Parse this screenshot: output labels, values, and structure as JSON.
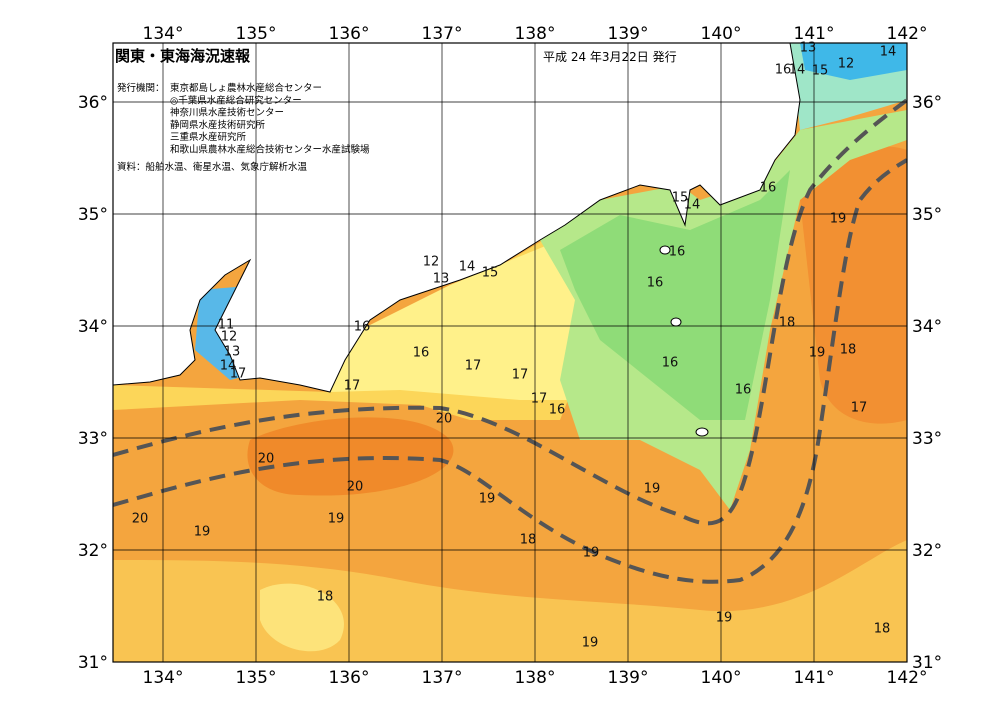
{
  "header": {
    "title": "関東・東海海況速報",
    "date": "平成 24 年3月22日 発行",
    "agencies_label": "発行機関：",
    "agencies": [
      "東京都島しょ農林水産総合センター",
      "◎千葉県水産総合研究センター",
      "神奈川県水産技術センター",
      "静岡県水産技術研究所",
      "三重県水産研究所",
      "和歌山県農林水産総合技術センター水産試験場"
    ],
    "source": "資料：船舶水温、衛星水温、気象庁解析水温"
  },
  "map": {
    "lon_ticks": [
      {
        "value": 134,
        "label": "134°"
      },
      {
        "value": 135,
        "label": "135°"
      },
      {
        "value": 136,
        "label": "136°"
      },
      {
        "value": 137,
        "label": "137°"
      },
      {
        "value": 138,
        "label": "138°"
      },
      {
        "value": 139,
        "label": "139°"
      },
      {
        "value": 140,
        "label": "140°"
      },
      {
        "value": 141,
        "label": "141°"
      },
      {
        "value": 142,
        "label": "142°"
      }
    ],
    "lat_ticks": [
      {
        "value": 31,
        "label": "31°"
      },
      {
        "value": 32,
        "label": "32°"
      },
      {
        "value": 33,
        "label": "33°"
      },
      {
        "value": 34,
        "label": "34°"
      },
      {
        "value": 35,
        "label": "35°"
      },
      {
        "value": 36,
        "label": "36°"
      }
    ],
    "contour_labels": [
      13,
      14,
      12,
      16,
      14,
      15,
      16,
      19,
      15,
      14,
      16,
      16,
      12,
      14,
      15,
      13,
      16,
      16,
      11,
      12,
      13,
      14,
      17,
      17,
      17,
      17,
      17,
      16,
      16,
      16,
      18,
      19,
      18,
      17,
      20,
      20,
      20,
      19,
      19,
      20,
      19,
      19,
      18,
      19,
      18,
      19,
      19,
      18
    ]
  }
}
